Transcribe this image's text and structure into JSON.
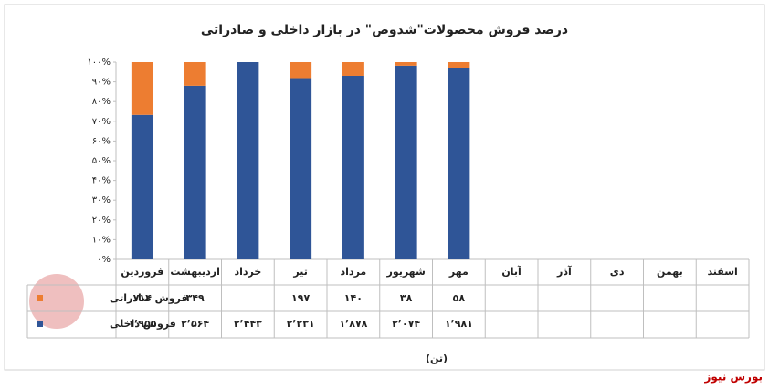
{
  "chart_data": {
    "type": "stacked_percent_bar",
    "title": "درصد فروش محصولات\"شدوص\" در بازار داخلی و صادراتی",
    "unit_label": "(تن)",
    "source": "بورس نیوز",
    "categories": [
      "فروردین",
      "اردیبهشت",
      "خرداد",
      "تیر",
      "مرداد",
      "شهریور",
      "مهر",
      "آبان",
      "آذر",
      "دی",
      "بهمن",
      "اسفند"
    ],
    "series": [
      {
        "name": "فروش داخلی",
        "color": "#2f5597",
        "values": [
          1955,
          2564,
          2443,
          2231,
          1878,
          2074,
          1981,
          null,
          null,
          null,
          null,
          null
        ],
        "value_labels": [
          "۱٬۹۵۵",
          "۲٬۵۶۴",
          "۲٬۴۴۳",
          "۲٬۲۳۱",
          "۱٬۸۷۸",
          "۲٬۰۷۴",
          "۱٬۹۸۱",
          null,
          null,
          null,
          null,
          null
        ]
      },
      {
        "name": "فروش صادراتی",
        "color": "#ed7d31",
        "values": [
          714,
          349,
          null,
          197,
          140,
          38,
          58,
          null,
          null,
          null,
          null,
          null
        ],
        "value_labels": [
          "۷۱۴",
          "۳۴۹",
          null,
          "۱۹۷",
          "۱۴۰",
          "۳۸",
          "۵۸",
          null,
          null,
          null,
          null,
          null
        ]
      }
    ],
    "ylim": [
      0,
      100
    ],
    "yticks": [
      {
        "value": 0,
        "label": "۰%"
      },
      {
        "value": 10,
        "label": "۱۰%"
      },
      {
        "value": 20,
        "label": "۲۰%"
      },
      {
        "value": 30,
        "label": "۳۰%"
      },
      {
        "value": 40,
        "label": "۴۰%"
      },
      {
        "value": 50,
        "label": "۵۰%"
      },
      {
        "value": 60,
        "label": "۶۰%"
      },
      {
        "value": 70,
        "label": "۷۰%"
      },
      {
        "value": 80,
        "label": "۸۰%"
      },
      {
        "value": 90,
        "label": "۹۰%"
      },
      {
        "value": 100,
        "label": "۱۰۰%"
      }
    ]
  }
}
